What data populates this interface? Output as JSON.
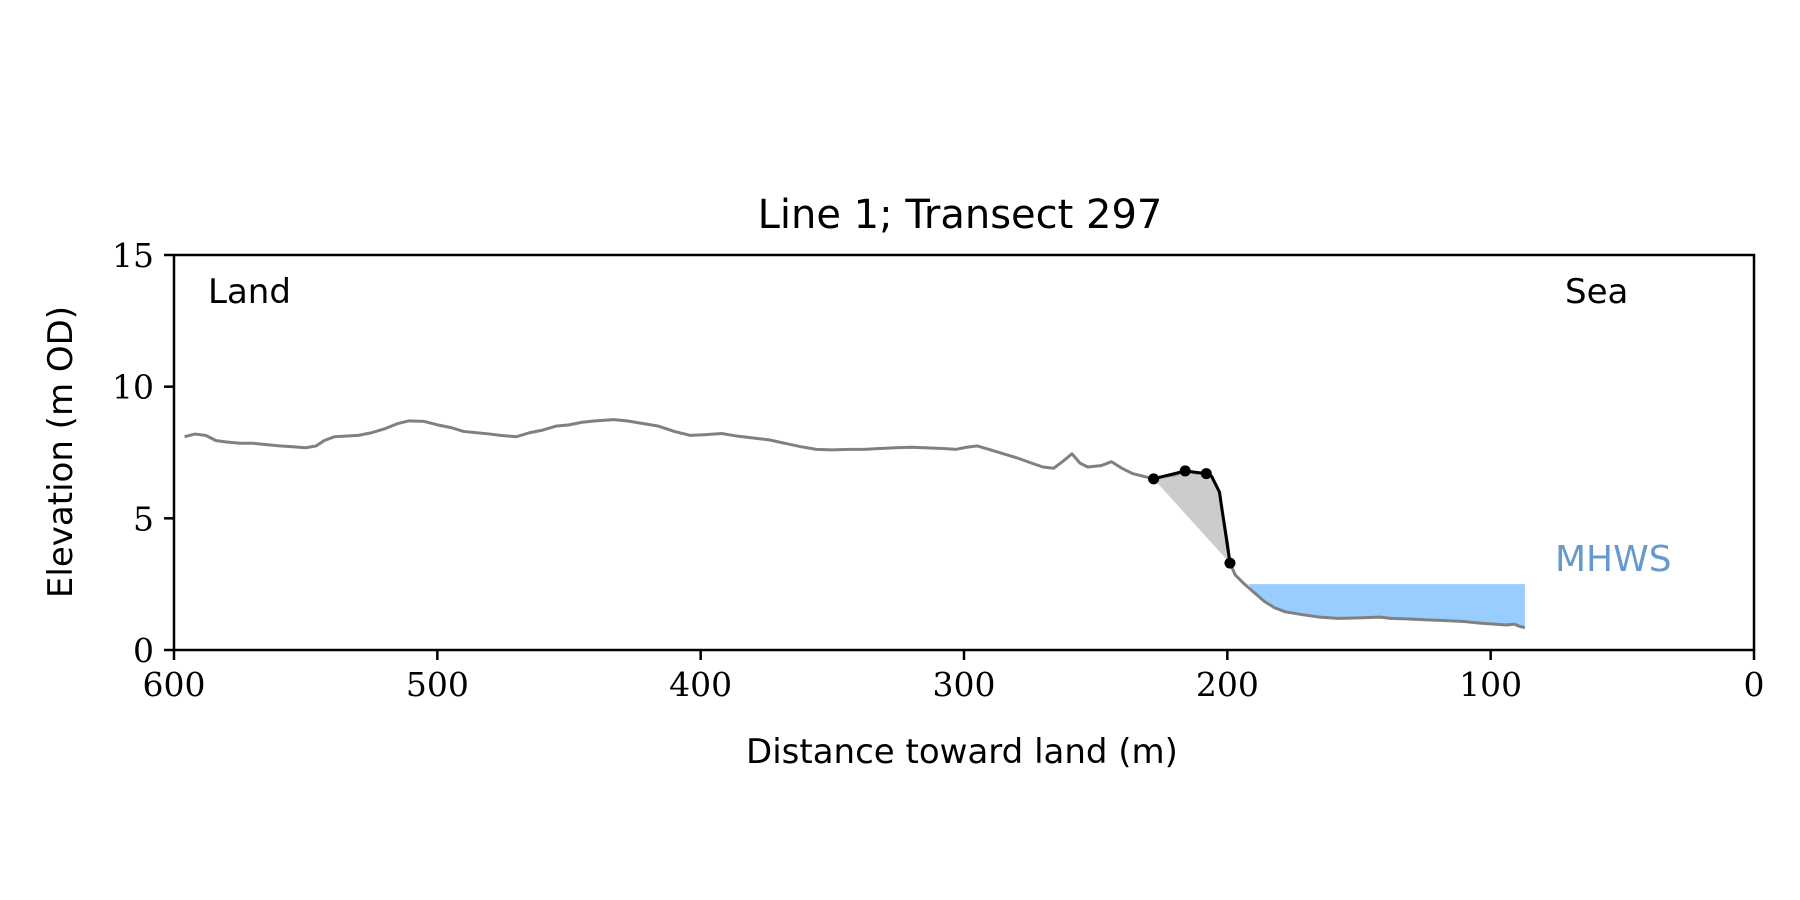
{
  "chart_data": {
    "type": "line",
    "title": "Line 1; Transect 297",
    "xlabel": "Distance toward land (m)",
    "ylabel": "Elevation (m OD)",
    "xlim": [
      600,
      0
    ],
    "ylim": [
      0,
      15
    ],
    "x_ticks": [
      600,
      500,
      400,
      300,
      200,
      100,
      0
    ],
    "y_ticks": [
      0,
      5,
      10,
      15
    ],
    "grid": false,
    "annotations": {
      "land": "Land",
      "sea": "Sea",
      "mhws": "MHWS"
    },
    "colors": {
      "profile": "#808080",
      "cliff": "#000000",
      "wedge": "#cccccc",
      "mhws_fill": "#99ccff",
      "mhws_text": "#6699cc"
    },
    "mhws": {
      "level": 2.5,
      "x_start": 192,
      "x_end": 87
    },
    "profile": [
      [
        596,
        8.1
      ],
      [
        592,
        8.2
      ],
      [
        588,
        8.15
      ],
      [
        584,
        7.95
      ],
      [
        580,
        7.9
      ],
      [
        575,
        7.85
      ],
      [
        570,
        7.85
      ],
      [
        565,
        7.8
      ],
      [
        560,
        7.75
      ],
      [
        555,
        7.72
      ],
      [
        550,
        7.68
      ],
      [
        546,
        7.75
      ],
      [
        543,
        7.95
      ],
      [
        539,
        8.1
      ],
      [
        535,
        8.12
      ],
      [
        530,
        8.15
      ],
      [
        525,
        8.25
      ],
      [
        520,
        8.4
      ],
      [
        515,
        8.6
      ],
      [
        511,
        8.7
      ],
      [
        505,
        8.68
      ],
      [
        500,
        8.55
      ],
      [
        495,
        8.45
      ],
      [
        490,
        8.3
      ],
      [
        485,
        8.25
      ],
      [
        480,
        8.2
      ],
      [
        476,
        8.15
      ],
      [
        470,
        8.1
      ],
      [
        465,
        8.25
      ],
      [
        460,
        8.35
      ],
      [
        455,
        8.5
      ],
      [
        450,
        8.55
      ],
      [
        445,
        8.65
      ],
      [
        440,
        8.7
      ],
      [
        433,
        8.75
      ],
      [
        428,
        8.7
      ],
      [
        422,
        8.6
      ],
      [
        416,
        8.5
      ],
      [
        410,
        8.3
      ],
      [
        404,
        8.15
      ],
      [
        398,
        8.18
      ],
      [
        392,
        8.22
      ],
      [
        386,
        8.12
      ],
      [
        380,
        8.05
      ],
      [
        374,
        7.98
      ],
      [
        368,
        7.85
      ],
      [
        362,
        7.72
      ],
      [
        356,
        7.62
      ],
      [
        350,
        7.6
      ],
      [
        344,
        7.62
      ],
      [
        338,
        7.62
      ],
      [
        332,
        7.65
      ],
      [
        326,
        7.68
      ],
      [
        320,
        7.7
      ],
      [
        315,
        7.68
      ],
      [
        308,
        7.65
      ],
      [
        303,
        7.62
      ],
      [
        299,
        7.7
      ],
      [
        295,
        7.75
      ],
      [
        290,
        7.6
      ],
      [
        285,
        7.45
      ],
      [
        280,
        7.3
      ],
      [
        275,
        7.12
      ],
      [
        270,
        6.95
      ],
      [
        266,
        6.9
      ],
      [
        262,
        7.2
      ],
      [
        259,
        7.45
      ],
      [
        256,
        7.1
      ],
      [
        253,
        6.95
      ],
      [
        248,
        7.0
      ],
      [
        244,
        7.15
      ],
      [
        240,
        6.9
      ],
      [
        236,
        6.7
      ],
      [
        232,
        6.6
      ],
      [
        228,
        6.5
      ],
      [
        224,
        6.6
      ],
      [
        220,
        6.65
      ],
      [
        216,
        6.8
      ],
      [
        212,
        6.72
      ],
      [
        208,
        6.7
      ],
      [
        206,
        6.6
      ],
      [
        203,
        6.0
      ],
      [
        202,
        5.3
      ],
      [
        200,
        4.1
      ],
      [
        199,
        3.3
      ],
      [
        197,
        2.85
      ],
      [
        194,
        2.55
      ],
      [
        190,
        2.2
      ],
      [
        186,
        1.85
      ],
      [
        182,
        1.6
      ],
      [
        178,
        1.45
      ],
      [
        172,
        1.35
      ],
      [
        165,
        1.25
      ],
      [
        158,
        1.2
      ],
      [
        150,
        1.22
      ],
      [
        142,
        1.25
      ],
      [
        138,
        1.2
      ],
      [
        132,
        1.18
      ],
      [
        125,
        1.15
      ],
      [
        118,
        1.12
      ],
      [
        110,
        1.08
      ],
      [
        104,
        1.02
      ],
      [
        98,
        0.98
      ],
      [
        94,
        0.95
      ],
      [
        91,
        0.98
      ],
      [
        89,
        0.9
      ],
      [
        87,
        0.85
      ]
    ],
    "cliff_line": [
      [
        228,
        6.5
      ],
      [
        216,
        6.8
      ],
      [
        208,
        6.7
      ],
      [
        206,
        6.6
      ],
      [
        203,
        6.0
      ],
      [
        199,
        3.3
      ]
    ],
    "cliff_points": [
      [
        228,
        6.5
      ],
      [
        216,
        6.8
      ],
      [
        208,
        6.7
      ],
      [
        199,
        3.3
      ]
    ]
  }
}
